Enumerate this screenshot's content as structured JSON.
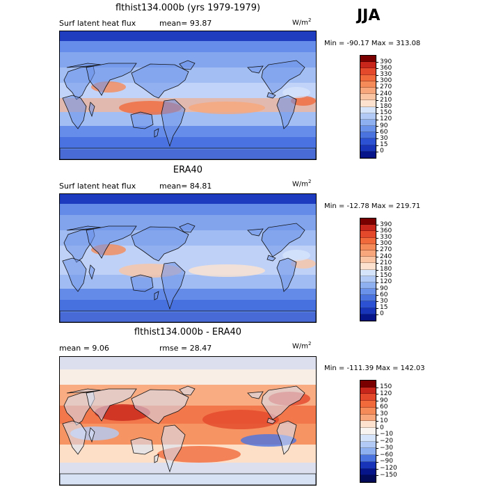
{
  "season": "JJA",
  "panels": [
    {
      "title": "flthist134.000b (yrs 1979-1979)",
      "left_text": "Surf latent heat flux",
      "stat_text": "mean=  93.87",
      "units_base": "W/m",
      "units_exp": "2",
      "minmax": "Min = -90.17 Max = 313.08",
      "colorbar_labels": [
        "390",
        "360",
        "330",
        "300",
        "270",
        "240",
        "210",
        "180",
        "150",
        "120",
        "90",
        "60",
        "30",
        "15",
        "0"
      ],
      "colorbar_colors": [
        "#7a0000",
        "#c8261a",
        "#e4492c",
        "#f06a3c",
        "#f58b58",
        "#f8a77c",
        "#fbc5a4",
        "#fde3cf",
        "#d6e4fb",
        "#b2cbf6",
        "#8eaff0",
        "#6b92ea",
        "#4a73e0",
        "#2c51d2",
        "#1834b8",
        "#06168a"
      ],
      "dominant": "#4a73e0"
    },
    {
      "title": "ERA40",
      "left_text": "Surf latent heat flux",
      "stat_text": "mean=  84.81",
      "units_base": "W/m",
      "units_exp": "2",
      "minmax": "Min = -12.78 Max = 219.71",
      "colorbar_labels": [
        "390",
        "360",
        "330",
        "300",
        "270",
        "240",
        "210",
        "180",
        "150",
        "120",
        "90",
        "60",
        "30",
        "15",
        "0"
      ],
      "colorbar_colors": [
        "#7a0000",
        "#c8261a",
        "#e4492c",
        "#f06a3c",
        "#f58b58",
        "#f8a77c",
        "#fbc5a4",
        "#fde3cf",
        "#d6e4fb",
        "#b2cbf6",
        "#8eaff0",
        "#6b92ea",
        "#4a73e0",
        "#2c51d2",
        "#1834b8",
        "#06168a"
      ],
      "dominant": "#3f68da"
    },
    {
      "title": "flthist134.000b - ERA40",
      "left_text": "mean =   9.06",
      "stat_text": "rmse =   28.47",
      "units_base": "W/m",
      "units_exp": "2",
      "minmax": "Min = -111.39 Max = 142.03",
      "colorbar_labels": [
        "150",
        "120",
        "90",
        "60",
        "30",
        "10",
        "0",
        "−10",
        "−20",
        "−30",
        "−60",
        "−90",
        "−120",
        "−150"
      ],
      "colorbar_colors": [
        "#7a0000",
        "#c8261a",
        "#e4492c",
        "#f06a3c",
        "#f58b58",
        "#f8a77c",
        "#fde3cf",
        "#f7f4f2",
        "#d6e4fb",
        "#b2cbf6",
        "#8eaff0",
        "#4a73e0",
        "#1834b8",
        "#06168a",
        "#020a5a"
      ],
      "dominant": "#fbc5a4"
    }
  ],
  "chart_data": [
    {
      "type": "heatmap",
      "title": "flthist134.000b (yrs 1979-1979)",
      "variable": "Surf latent heat flux",
      "units": "W/m2",
      "mean": 93.87,
      "min": -90.17,
      "max": 313.08,
      "levels": [
        0,
        15,
        30,
        60,
        90,
        120,
        150,
        180,
        210,
        240,
        270,
        300,
        330,
        360,
        390
      ]
    },
    {
      "type": "heatmap",
      "title": "ERA40",
      "variable": "Surf latent heat flux",
      "units": "W/m2",
      "mean": 84.81,
      "min": -12.78,
      "max": 219.71,
      "levels": [
        0,
        15,
        30,
        60,
        90,
        120,
        150,
        180,
        210,
        240,
        270,
        300,
        330,
        360,
        390
      ]
    },
    {
      "type": "heatmap",
      "title": "flthist134.000b - ERA40",
      "units": "W/m2",
      "mean": 9.06,
      "rmse": 28.47,
      "min": -111.39,
      "max": 142.03,
      "levels": [
        -150,
        -120,
        -90,
        -60,
        -30,
        -20,
        -10,
        0,
        10,
        30,
        60,
        90,
        120,
        150
      ]
    }
  ]
}
